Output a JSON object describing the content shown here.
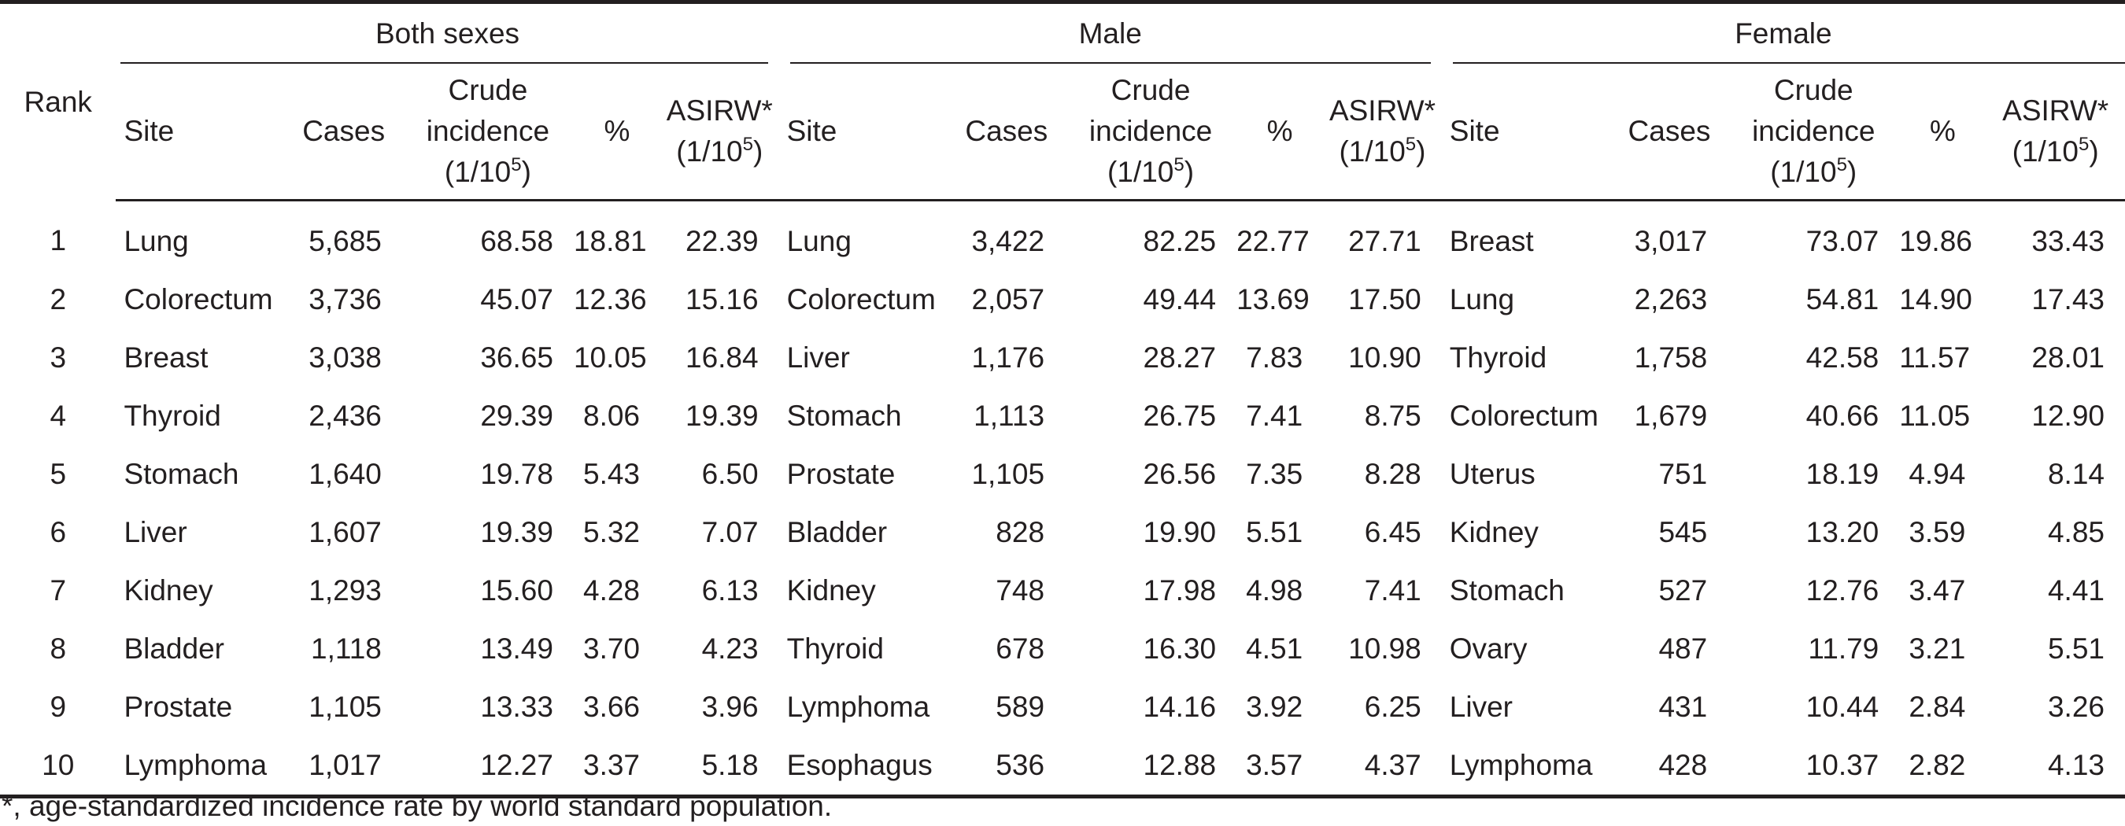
{
  "headers": {
    "rank": "Rank",
    "groups": [
      "Both sexes",
      "Male",
      "Female"
    ],
    "site": "Site",
    "cases": "Cases",
    "crude_l1": "Crude",
    "crude_l2": "incidence",
    "crude_l3": "(1/10",
    "asirw_l1": "ASIRW*",
    "asirw_l2": "(1/10",
    "unit_sup": "5",
    "unit_close": ")",
    "pct": "%"
  },
  "rows": [
    {
      "rank": "1",
      "both": {
        "site": "Lung",
        "cases": "5,685",
        "crude": "68.58",
        "pct": "18.81",
        "asirw": "22.39"
      },
      "male": {
        "site": "Lung",
        "cases": "3,422",
        "crude": "82.25",
        "pct": "22.77",
        "asirw": "27.71"
      },
      "female": {
        "site": "Breast",
        "cases": "3,017",
        "crude": "73.07",
        "pct": "19.86",
        "asirw": "33.43"
      }
    },
    {
      "rank": "2",
      "both": {
        "site": "Colorectum",
        "cases": "3,736",
        "crude": "45.07",
        "pct": "12.36",
        "asirw": "15.16"
      },
      "male": {
        "site": "Colorectum",
        "cases": "2,057",
        "crude": "49.44",
        "pct": "13.69",
        "asirw": "17.50"
      },
      "female": {
        "site": "Lung",
        "cases": "2,263",
        "crude": "54.81",
        "pct": "14.90",
        "asirw": "17.43"
      }
    },
    {
      "rank": "3",
      "both": {
        "site": "Breast",
        "cases": "3,038",
        "crude": "36.65",
        "pct": "10.05",
        "asirw": "16.84"
      },
      "male": {
        "site": "Liver",
        "cases": "1,176",
        "crude": "28.27",
        "pct": "7.83",
        "asirw": "10.90"
      },
      "female": {
        "site": "Thyroid",
        "cases": "1,758",
        "crude": "42.58",
        "pct": "11.57",
        "asirw": "28.01"
      }
    },
    {
      "rank": "4",
      "both": {
        "site": "Thyroid",
        "cases": "2,436",
        "crude": "29.39",
        "pct": "8.06",
        "asirw": "19.39"
      },
      "male": {
        "site": "Stomach",
        "cases": "1,113",
        "crude": "26.75",
        "pct": "7.41",
        "asirw": "8.75"
      },
      "female": {
        "site": "Colorectum",
        "cases": "1,679",
        "crude": "40.66",
        "pct": "11.05",
        "asirw": "12.90"
      }
    },
    {
      "rank": "5",
      "both": {
        "site": "Stomach",
        "cases": "1,640",
        "crude": "19.78",
        "pct": "5.43",
        "asirw": "6.50"
      },
      "male": {
        "site": "Prostate",
        "cases": "1,105",
        "crude": "26.56",
        "pct": "7.35",
        "asirw": "8.28"
      },
      "female": {
        "site": "Uterus",
        "cases": "751",
        "crude": "18.19",
        "pct": "4.94",
        "asirw": "8.14"
      }
    },
    {
      "rank": "6",
      "both": {
        "site": "Liver",
        "cases": "1,607",
        "crude": "19.39",
        "pct": "5.32",
        "asirw": "7.07"
      },
      "male": {
        "site": "Bladder",
        "cases": "828",
        "crude": "19.90",
        "pct": "5.51",
        "asirw": "6.45"
      },
      "female": {
        "site": "Kidney",
        "cases": "545",
        "crude": "13.20",
        "pct": "3.59",
        "asirw": "4.85"
      }
    },
    {
      "rank": "7",
      "both": {
        "site": "Kidney",
        "cases": "1,293",
        "crude": "15.60",
        "pct": "4.28",
        "asirw": "6.13"
      },
      "male": {
        "site": "Kidney",
        "cases": "748",
        "crude": "17.98",
        "pct": "4.98",
        "asirw": "7.41"
      },
      "female": {
        "site": "Stomach",
        "cases": "527",
        "crude": "12.76",
        "pct": "3.47",
        "asirw": "4.41"
      }
    },
    {
      "rank": "8",
      "both": {
        "site": "Bladder",
        "cases": "1,118",
        "crude": "13.49",
        "pct": "3.70",
        "asirw": "4.23"
      },
      "male": {
        "site": "Thyroid",
        "cases": "678",
        "crude": "16.30",
        "pct": "4.51",
        "asirw": "10.98"
      },
      "female": {
        "site": "Ovary",
        "cases": "487",
        "crude": "11.79",
        "pct": "3.21",
        "asirw": "5.51"
      }
    },
    {
      "rank": "9",
      "both": {
        "site": "Prostate",
        "cases": "1,105",
        "crude": "13.33",
        "pct": "3.66",
        "asirw": "3.96"
      },
      "male": {
        "site": "Lymphoma",
        "cases": "589",
        "crude": "14.16",
        "pct": "3.92",
        "asirw": "6.25"
      },
      "female": {
        "site": "Liver",
        "cases": "431",
        "crude": "10.44",
        "pct": "2.84",
        "asirw": "3.26"
      }
    },
    {
      "rank": "10",
      "both": {
        "site": "Lymphoma",
        "cases": "1,017",
        "crude": "12.27",
        "pct": "3.37",
        "asirw": "5.18"
      },
      "male": {
        "site": "Esophagus",
        "cases": "536",
        "crude": "12.88",
        "pct": "3.57",
        "asirw": "4.37"
      },
      "female": {
        "site": "Lymphoma",
        "cases": "428",
        "crude": "10.37",
        "pct": "2.82",
        "asirw": "4.13"
      }
    }
  ],
  "footnote": "*, age-standardized incidence rate by world standard population."
}
